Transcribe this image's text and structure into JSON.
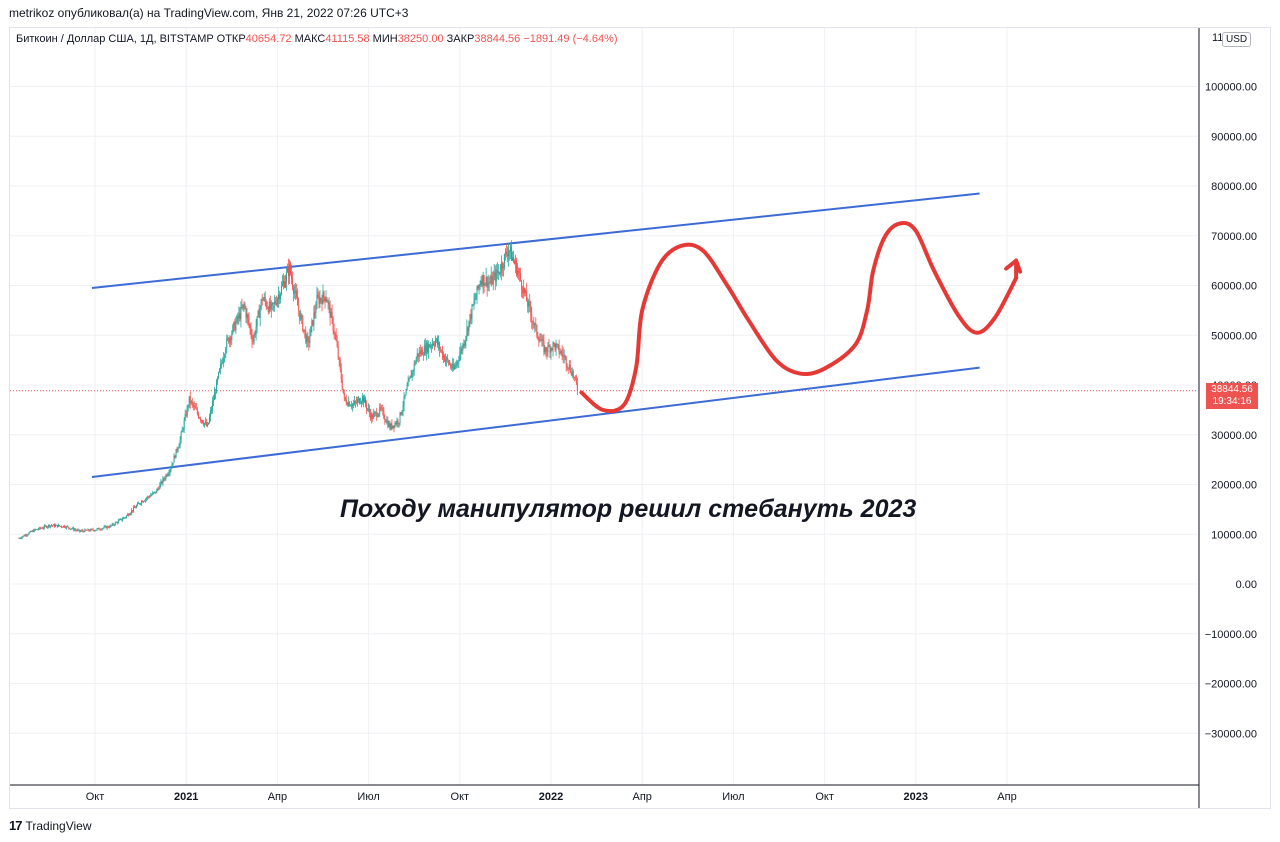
{
  "publication": "metrikoz опубликовал(а) на TradingView.com, Янв 21, 2022 07:26 UTC+3",
  "header": {
    "symbol": "Биткоин / Доллар США, 1Д, BITSTAMP",
    "open_label": "ОТКР",
    "open_value": "40654.72",
    "high_label": "МАКС",
    "high_value": "41115.58",
    "low_label": "МИН",
    "low_value": "38250.00",
    "close_label": "ЗАКР",
    "close_value": "38844.56",
    "change": "−1891.49 (−4.64%)"
  },
  "currency": "USD",
  "price_label": {
    "price": "38844.56",
    "timer": "19:34:16"
  },
  "annotation": "Походу манипулятор решил стебануть 2023",
  "footer": {
    "brand": "TradingView"
  },
  "colors": {
    "up": "#26a69a",
    "down": "#ef5350",
    "channel": "#3d6bd6",
    "forecast": "#e53935",
    "grid": "#eef0f4"
  },
  "chart_data": {
    "type": "candlestick",
    "title": "Биткоин / Доллар США, 1Д, BITSTAMP",
    "ylim": [
      -40000,
      110000
    ],
    "y_ticks": [
      100000,
      90000,
      80000,
      70000,
      60000,
      50000,
      40000,
      30000,
      20000,
      10000,
      0,
      -10000,
      -20000,
      -30000
    ],
    "y_tick_labels": [
      "100000.00",
      "90000.00",
      "80000.00",
      "70000.00",
      "60000.00",
      "50000.00",
      "40000.00",
      "30000.00",
      "20000.00",
      "10000.00",
      "0.00",
      "−10000.00",
      "−20000.00",
      "−30000.00"
    ],
    "x_ticks": [
      {
        "label": "Окт",
        "month": 10.0
      },
      {
        "label": "2021",
        "month": 13.0,
        "bold": true
      },
      {
        "label": "Апр",
        "month": 16.0
      },
      {
        "label": "Июл",
        "month": 19.0
      },
      {
        "label": "Окт",
        "month": 22.0
      },
      {
        "label": "2022",
        "month": 25.0,
        "bold": true
      },
      {
        "label": "Апр",
        "month": 28.0
      },
      {
        "label": "Июл",
        "month": 31.0
      },
      {
        "label": "Окт",
        "month": 34.0
      },
      {
        "label": "2023",
        "month": 37.0,
        "bold": true
      },
      {
        "label": "Апр",
        "month": 40.0
      }
    ],
    "price_path": [
      [
        7.5,
        9200
      ],
      [
        8.0,
        10800
      ],
      [
        8.5,
        11800
      ],
      [
        9.0,
        11600
      ],
      [
        9.5,
        10600
      ],
      [
        10.0,
        10900
      ],
      [
        10.5,
        11600
      ],
      [
        11.0,
        13500
      ],
      [
        11.5,
        16500
      ],
      [
        12.0,
        18500
      ],
      [
        12.5,
        23500
      ],
      [
        12.8,
        29000
      ],
      [
        13.1,
        37000
      ],
      [
        13.4,
        34000
      ],
      [
        13.7,
        31500
      ],
      [
        14.0,
        40000
      ],
      [
        14.3,
        48000
      ],
      [
        14.6,
        52000
      ],
      [
        14.9,
        56000
      ],
      [
        15.2,
        49000
      ],
      [
        15.5,
        57500
      ],
      [
        15.8,
        55000
      ],
      [
        16.1,
        59000
      ],
      [
        16.4,
        63500
      ],
      [
        16.7,
        55000
      ],
      [
        17.0,
        48000
      ],
      [
        17.3,
        57000
      ],
      [
        17.6,
        58000
      ],
      [
        17.9,
        50000
      ],
      [
        18.2,
        37000
      ],
      [
        18.5,
        36000
      ],
      [
        18.8,
        37500
      ],
      [
        19.1,
        33500
      ],
      [
        19.4,
        35000
      ],
      [
        19.7,
        31500
      ],
      [
        20.0,
        33000
      ],
      [
        20.3,
        40000
      ],
      [
        20.6,
        46000
      ],
      [
        20.9,
        47500
      ],
      [
        21.2,
        49000
      ],
      [
        21.5,
        45500
      ],
      [
        21.8,
        43000
      ],
      [
        22.1,
        48000
      ],
      [
        22.4,
        55000
      ],
      [
        22.7,
        61500
      ],
      [
        23.0,
        60500
      ],
      [
        23.3,
        63000
      ],
      [
        23.6,
        67500
      ],
      [
        23.9,
        63000
      ],
      [
        24.2,
        57000
      ],
      [
        24.5,
        51000
      ],
      [
        24.8,
        47000
      ],
      [
        25.1,
        48000
      ],
      [
        25.4,
        46000
      ],
      [
        25.7,
        42500
      ],
      [
        25.9,
        38844.56
      ]
    ],
    "channel": {
      "upper": [
        [
          9.9,
          59500
        ],
        [
          39.1,
          78500
        ]
      ],
      "lower": [
        [
          9.9,
          21500
        ],
        [
          39.1,
          43500
        ]
      ]
    },
    "forecast_path": [
      [
        26.0,
        38500
      ],
      [
        26.7,
        35000
      ],
      [
        27.4,
        36000
      ],
      [
        27.8,
        43500
      ],
      [
        28.0,
        55000
      ],
      [
        28.6,
        64500
      ],
      [
        29.3,
        68000
      ],
      [
        30.0,
        67000
      ],
      [
        30.8,
        60000
      ],
      [
        31.5,
        53000
      ],
      [
        32.4,
        45000
      ],
      [
        33.2,
        42300
      ],
      [
        34.0,
        43300
      ],
      [
        35.0,
        48000
      ],
      [
        35.4,
        55000
      ],
      [
        35.6,
        63000
      ],
      [
        36.0,
        70000
      ],
      [
        36.5,
        72500
      ],
      [
        37.0,
        71000
      ],
      [
        37.6,
        63000
      ],
      [
        38.4,
        54000
      ],
      [
        39.0,
        50500
      ],
      [
        39.6,
        53500
      ],
      [
        40.3,
        61500
      ]
    ],
    "arrow_head": [
      40.3,
      65000
    ],
    "last_price": 38844.56
  }
}
